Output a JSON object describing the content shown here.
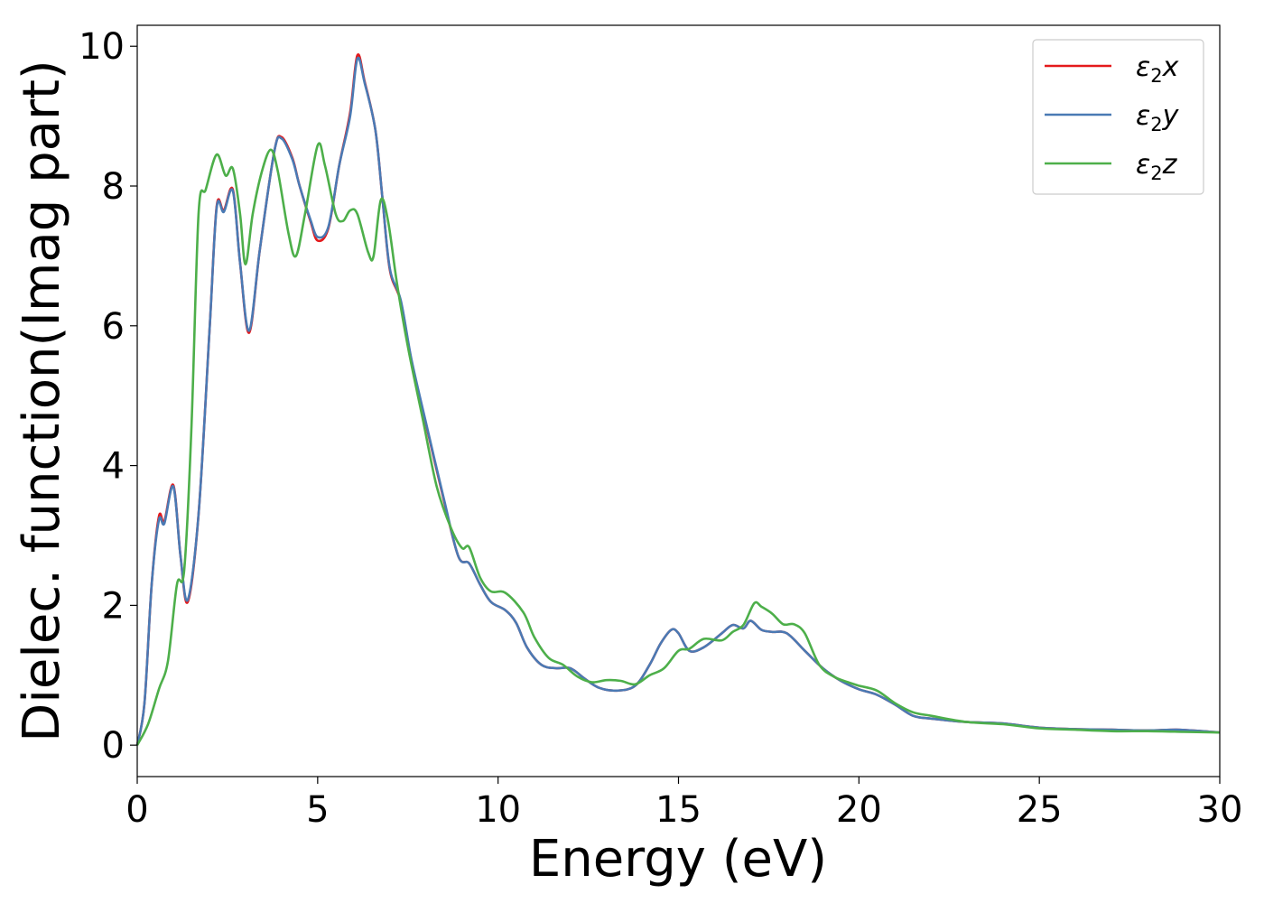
{
  "chart_data": {
    "type": "line",
    "title": "",
    "xlabel": "Energy (eV)",
    "ylabel": "Dielec. function(Imag part)",
    "xlim": [
      0,
      30
    ],
    "ylim": [
      -0.45,
      10.3
    ],
    "xticks": [
      0,
      5,
      10,
      15,
      20,
      25,
      30
    ],
    "yticks": [
      0,
      2,
      4,
      6,
      8,
      10
    ],
    "grid": false,
    "legend_position": "top-right",
    "series": [
      {
        "name": "ε₂x",
        "legend": {
          "base": "ε",
          "sub": "2",
          "suffix": "x"
        },
        "color": "#e41a1c",
        "points": [
          [
            0,
            0
          ],
          [
            0.2,
            0.6
          ],
          [
            0.4,
            2.3
          ],
          [
            0.6,
            3.27
          ],
          [
            0.75,
            3.2
          ],
          [
            1.0,
            3.72
          ],
          [
            1.2,
            2.7
          ],
          [
            1.4,
            2.05
          ],
          [
            1.7,
            3.3
          ],
          [
            2.0,
            5.9
          ],
          [
            2.2,
            7.7
          ],
          [
            2.4,
            7.65
          ],
          [
            2.65,
            7.95
          ],
          [
            2.85,
            6.9
          ],
          [
            3.1,
            5.9
          ],
          [
            3.4,
            7.1
          ],
          [
            3.8,
            8.5
          ],
          [
            4.0,
            8.7
          ],
          [
            4.3,
            8.4
          ],
          [
            4.5,
            8.0
          ],
          [
            4.8,
            7.5
          ],
          [
            5.0,
            7.22
          ],
          [
            5.3,
            7.4
          ],
          [
            5.6,
            8.3
          ],
          [
            5.9,
            9.05
          ],
          [
            6.1,
            9.87
          ],
          [
            6.3,
            9.5
          ],
          [
            6.6,
            8.8
          ],
          [
            6.8,
            7.8
          ],
          [
            7.0,
            6.8
          ],
          [
            7.3,
            6.35
          ],
          [
            7.6,
            5.5
          ],
          [
            8.0,
            4.6
          ],
          [
            8.5,
            3.5
          ],
          [
            8.9,
            2.7
          ],
          [
            9.2,
            2.6
          ],
          [
            9.5,
            2.3
          ],
          [
            9.8,
            2.05
          ],
          [
            10.2,
            1.93
          ],
          [
            10.5,
            1.75
          ],
          [
            10.8,
            1.4
          ],
          [
            11.2,
            1.15
          ],
          [
            11.6,
            1.1
          ],
          [
            12.0,
            1.1
          ],
          [
            12.4,
            0.95
          ],
          [
            12.8,
            0.82
          ],
          [
            13.3,
            0.78
          ],
          [
            13.8,
            0.85
          ],
          [
            14.2,
            1.15
          ],
          [
            14.5,
            1.45
          ],
          [
            14.8,
            1.65
          ],
          [
            15.0,
            1.6
          ],
          [
            15.3,
            1.35
          ],
          [
            15.7,
            1.4
          ],
          [
            16.2,
            1.6
          ],
          [
            16.5,
            1.72
          ],
          [
            16.8,
            1.67
          ],
          [
            17.0,
            1.78
          ],
          [
            17.3,
            1.65
          ],
          [
            17.6,
            1.62
          ],
          [
            18.0,
            1.6
          ],
          [
            18.5,
            1.35
          ],
          [
            19.0,
            1.1
          ],
          [
            19.5,
            0.92
          ],
          [
            20.0,
            0.8
          ],
          [
            20.5,
            0.72
          ],
          [
            21.0,
            0.58
          ],
          [
            21.5,
            0.42
          ],
          [
            22.0,
            0.38
          ],
          [
            23.0,
            0.33
          ],
          [
            24.0,
            0.31
          ],
          [
            25.0,
            0.25
          ],
          [
            26.0,
            0.23
          ],
          [
            27.0,
            0.22
          ],
          [
            28.0,
            0.21
          ],
          [
            28.8,
            0.22
          ],
          [
            29.5,
            0.2
          ],
          [
            30.0,
            0.18
          ]
        ]
      },
      {
        "name": "ε₂y",
        "legend": {
          "base": "ε",
          "sub": "2",
          "suffix": "y"
        },
        "color": "#4a7ab4",
        "points": [
          [
            0,
            0
          ],
          [
            0.2,
            0.6
          ],
          [
            0.4,
            2.3
          ],
          [
            0.6,
            3.22
          ],
          [
            0.75,
            3.17
          ],
          [
            1.0,
            3.7
          ],
          [
            1.2,
            2.7
          ],
          [
            1.4,
            2.08
          ],
          [
            1.7,
            3.3
          ],
          [
            2.0,
            5.9
          ],
          [
            2.2,
            7.68
          ],
          [
            2.4,
            7.63
          ],
          [
            2.65,
            7.93
          ],
          [
            2.85,
            6.9
          ],
          [
            3.1,
            5.93
          ],
          [
            3.4,
            7.1
          ],
          [
            3.8,
            8.5
          ],
          [
            4.0,
            8.68
          ],
          [
            4.3,
            8.38
          ],
          [
            4.5,
            8.0
          ],
          [
            4.8,
            7.52
          ],
          [
            5.0,
            7.27
          ],
          [
            5.3,
            7.42
          ],
          [
            5.6,
            8.3
          ],
          [
            5.9,
            9.0
          ],
          [
            6.1,
            9.82
          ],
          [
            6.3,
            9.48
          ],
          [
            6.6,
            8.8
          ],
          [
            6.8,
            7.8
          ],
          [
            7.0,
            6.82
          ],
          [
            7.3,
            6.37
          ],
          [
            7.6,
            5.52
          ],
          [
            8.0,
            4.62
          ],
          [
            8.5,
            3.52
          ],
          [
            8.9,
            2.7
          ],
          [
            9.2,
            2.6
          ],
          [
            9.5,
            2.3
          ],
          [
            9.8,
            2.05
          ],
          [
            10.2,
            1.93
          ],
          [
            10.5,
            1.75
          ],
          [
            10.8,
            1.4
          ],
          [
            11.2,
            1.15
          ],
          [
            11.6,
            1.1
          ],
          [
            12.0,
            1.1
          ],
          [
            12.4,
            0.95
          ],
          [
            12.8,
            0.82
          ],
          [
            13.3,
            0.78
          ],
          [
            13.8,
            0.85
          ],
          [
            14.2,
            1.15
          ],
          [
            14.5,
            1.45
          ],
          [
            14.8,
            1.65
          ],
          [
            15.0,
            1.6
          ],
          [
            15.3,
            1.35
          ],
          [
            15.7,
            1.4
          ],
          [
            16.2,
            1.6
          ],
          [
            16.5,
            1.72
          ],
          [
            16.8,
            1.67
          ],
          [
            17.0,
            1.78
          ],
          [
            17.3,
            1.65
          ],
          [
            17.6,
            1.62
          ],
          [
            18.0,
            1.6
          ],
          [
            18.5,
            1.35
          ],
          [
            19.0,
            1.1
          ],
          [
            19.5,
            0.92
          ],
          [
            20.0,
            0.8
          ],
          [
            20.5,
            0.72
          ],
          [
            21.0,
            0.58
          ],
          [
            21.5,
            0.42
          ],
          [
            22.0,
            0.38
          ],
          [
            23.0,
            0.33
          ],
          [
            24.0,
            0.31
          ],
          [
            25.0,
            0.25
          ],
          [
            26.0,
            0.23
          ],
          [
            27.0,
            0.22
          ],
          [
            28.0,
            0.21
          ],
          [
            28.8,
            0.22
          ],
          [
            29.5,
            0.2
          ],
          [
            30.0,
            0.18
          ]
        ]
      },
      {
        "name": "ε₂z",
        "legend": {
          "base": "ε",
          "sub": "2",
          "suffix": "z"
        },
        "color": "#4daf4a",
        "points": [
          [
            0,
            0
          ],
          [
            0.3,
            0.3
          ],
          [
            0.6,
            0.8
          ],
          [
            0.85,
            1.2
          ],
          [
            1.1,
            2.3
          ],
          [
            1.3,
            2.5
          ],
          [
            1.5,
            4.5
          ],
          [
            1.7,
            7.6
          ],
          [
            1.9,
            7.95
          ],
          [
            2.2,
            8.45
          ],
          [
            2.45,
            8.15
          ],
          [
            2.65,
            8.25
          ],
          [
            2.85,
            7.6
          ],
          [
            3.0,
            6.88
          ],
          [
            3.2,
            7.6
          ],
          [
            3.45,
            8.2
          ],
          [
            3.7,
            8.52
          ],
          [
            3.9,
            8.2
          ],
          [
            4.2,
            7.3
          ],
          [
            4.4,
            7.0
          ],
          [
            4.65,
            7.6
          ],
          [
            5.0,
            8.58
          ],
          [
            5.2,
            8.3
          ],
          [
            5.5,
            7.6
          ],
          [
            5.7,
            7.5
          ],
          [
            5.9,
            7.65
          ],
          [
            6.1,
            7.6
          ],
          [
            6.4,
            7.05
          ],
          [
            6.55,
            7.0
          ],
          [
            6.75,
            7.8
          ],
          [
            6.95,
            7.5
          ],
          [
            7.2,
            6.6
          ],
          [
            7.5,
            5.7
          ],
          [
            7.9,
            4.7
          ],
          [
            8.3,
            3.7
          ],
          [
            8.7,
            3.1
          ],
          [
            9.0,
            2.82
          ],
          [
            9.2,
            2.83
          ],
          [
            9.5,
            2.4
          ],
          [
            9.8,
            2.2
          ],
          [
            10.2,
            2.18
          ],
          [
            10.7,
            1.9
          ],
          [
            11.0,
            1.55
          ],
          [
            11.4,
            1.25
          ],
          [
            11.8,
            1.15
          ],
          [
            12.2,
            0.98
          ],
          [
            12.6,
            0.9
          ],
          [
            13.0,
            0.93
          ],
          [
            13.4,
            0.92
          ],
          [
            13.8,
            0.87
          ],
          [
            14.2,
            1.0
          ],
          [
            14.6,
            1.1
          ],
          [
            15.0,
            1.35
          ],
          [
            15.3,
            1.38
          ],
          [
            15.7,
            1.52
          ],
          [
            16.2,
            1.5
          ],
          [
            16.5,
            1.62
          ],
          [
            16.8,
            1.72
          ],
          [
            17.1,
            2.03
          ],
          [
            17.3,
            1.98
          ],
          [
            17.6,
            1.88
          ],
          [
            17.9,
            1.73
          ],
          [
            18.2,
            1.73
          ],
          [
            18.5,
            1.6
          ],
          [
            18.9,
            1.15
          ],
          [
            19.3,
            0.98
          ],
          [
            19.7,
            0.9
          ],
          [
            20.0,
            0.85
          ],
          [
            20.5,
            0.78
          ],
          [
            21.0,
            0.6
          ],
          [
            21.5,
            0.47
          ],
          [
            22.0,
            0.42
          ],
          [
            23.0,
            0.33
          ],
          [
            24.0,
            0.3
          ],
          [
            25.0,
            0.24
          ],
          [
            26.0,
            0.22
          ],
          [
            27.0,
            0.2
          ],
          [
            28.0,
            0.2
          ],
          [
            29.0,
            0.19
          ],
          [
            30.0,
            0.18
          ]
        ]
      }
    ]
  }
}
